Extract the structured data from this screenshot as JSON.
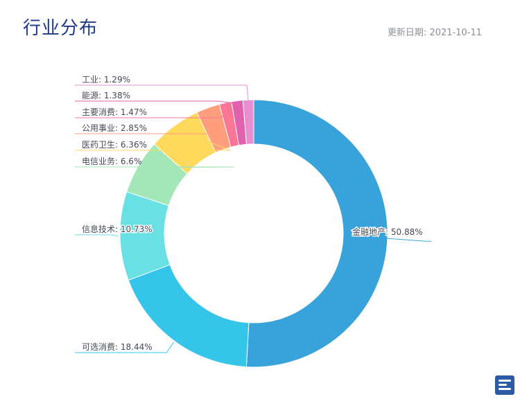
{
  "page": {
    "title": "行业分布",
    "update_label": "更新日期:",
    "update_date": "2021-10-11"
  },
  "chart_data": {
    "type": "pie",
    "style": "donut",
    "legend": "none",
    "categories": [
      "金融地产",
      "可选消费",
      "信息技术",
      "电信业务",
      "医药卫生",
      "公用事业",
      "主要消费",
      "能源",
      "工业"
    ],
    "values": [
      50.88,
      18.44,
      10.73,
      6.6,
      6.36,
      2.85,
      1.47,
      1.38,
      1.29
    ],
    "labels": [
      "金融地产: 50.88%",
      "可选消费: 18.44%",
      "信息技术: 10.73%",
      "电信业务: 6.6%",
      "医药卫生: 6.36%",
      "公用事业: 2.85%",
      "主要消费: 1.47%",
      "能源: 1.38%",
      "工业: 1.29%"
    ],
    "colors": [
      "#38a3db",
      "#35c5e8",
      "#69e0e4",
      "#a3e6b8",
      "#ffd95c",
      "#ff9e7c",
      "#fb7595",
      "#e062ae",
      "#e690d1"
    ]
  }
}
